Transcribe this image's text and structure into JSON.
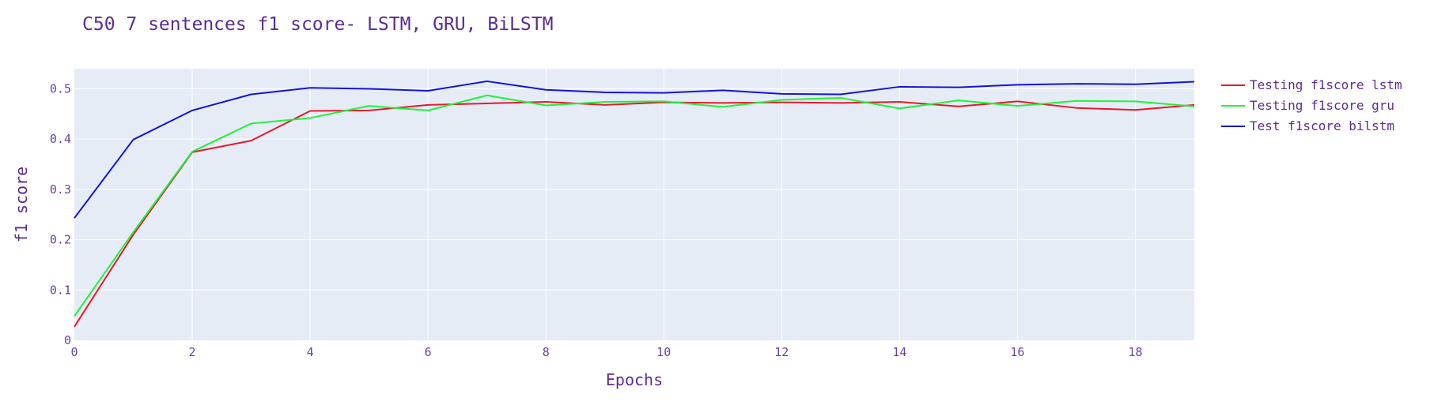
{
  "chart_data": {
    "type": "line",
    "title": "C50 7 sentences f1 score- LSTM, GRU, BiLSTM",
    "xlabel": "Epochs",
    "ylabel": "f1 score",
    "xlim": [
      0,
      19
    ],
    "ylim": [
      0,
      0.54
    ],
    "x_ticks": [
      0,
      2,
      4,
      6,
      8,
      10,
      12,
      14,
      16,
      18
    ],
    "y_ticks": [
      0,
      0.1,
      0.2,
      0.3,
      0.4,
      0.5
    ],
    "x_tick_labels": [
      "0",
      "2",
      "4",
      "6",
      "8",
      "10",
      "12",
      "14",
      "16",
      "18"
    ],
    "y_tick_labels": [
      "0",
      "0.1",
      "0.2",
      "0.3",
      "0.4",
      "0.5"
    ],
    "grid": true,
    "legend_position": "top-right",
    "x": [
      0,
      1,
      2,
      3,
      4,
      5,
      6,
      7,
      8,
      9,
      10,
      11,
      12,
      13,
      14,
      15,
      16,
      17,
      18,
      19
    ],
    "series": [
      {
        "name": "Testing f1score lstm",
        "color": "#e8182c",
        "values": [
          0.027,
          0.21,
          0.374,
          0.397,
          0.456,
          0.457,
          0.468,
          0.471,
          0.474,
          0.468,
          0.473,
          0.472,
          0.473,
          0.472,
          0.474,
          0.465,
          0.475,
          0.462,
          0.458,
          0.468
        ]
      },
      {
        "name": "Testing f1score gru",
        "color": "#1ff23a",
        "values": [
          0.048,
          0.215,
          0.375,
          0.431,
          0.442,
          0.466,
          0.457,
          0.487,
          0.467,
          0.474,
          0.475,
          0.464,
          0.478,
          0.482,
          0.461,
          0.477,
          0.466,
          0.476,
          0.475,
          0.465
        ]
      },
      {
        "name": "Test f1score bilstm",
        "color": "#1414d6",
        "values": [
          0.243,
          0.399,
          0.457,
          0.489,
          0.502,
          0.5,
          0.496,
          0.515,
          0.498,
          0.493,
          0.492,
          0.497,
          0.49,
          0.489,
          0.504,
          0.503,
          0.508,
          0.51,
          0.509,
          0.514
        ]
      }
    ]
  }
}
